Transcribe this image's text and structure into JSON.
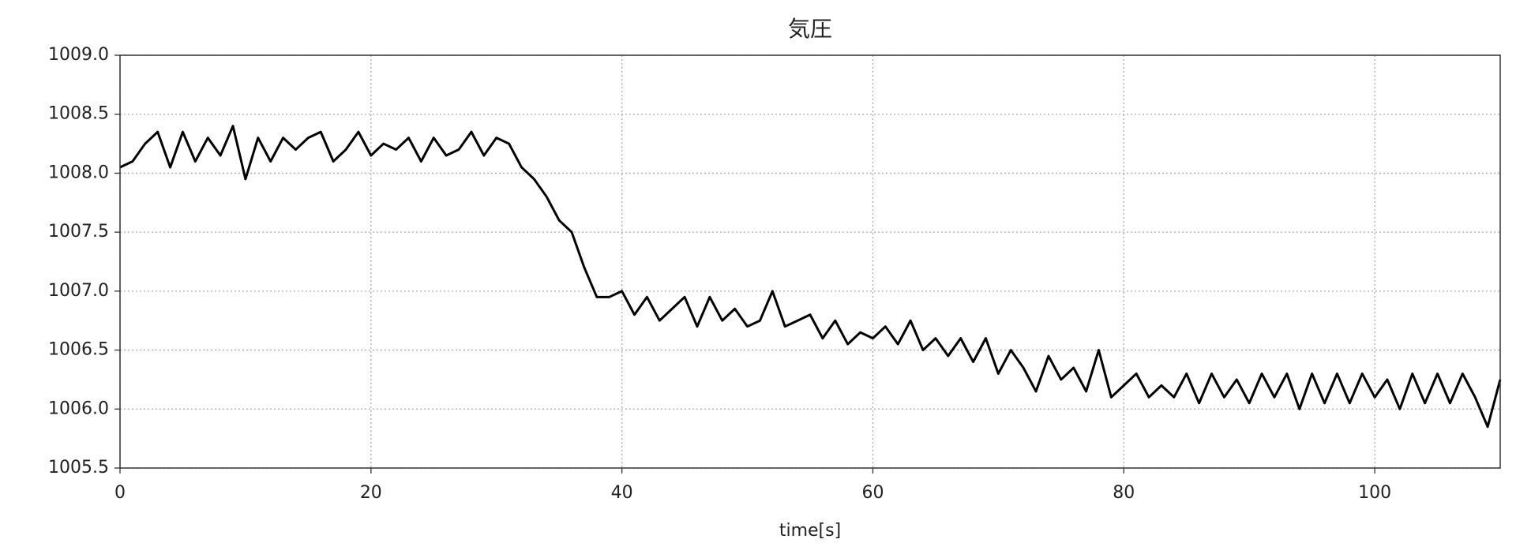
{
  "chart_data": {
    "type": "line",
    "title": "気圧",
    "x_label": "time[s]",
    "x": [
      0,
      1,
      2,
      3,
      4,
      5,
      6,
      7,
      8,
      9,
      10,
      11,
      12,
      13,
      14,
      15,
      16,
      17,
      18,
      19,
      20,
      21,
      22,
      23,
      24,
      25,
      26,
      27,
      28,
      29,
      30,
      31,
      32,
      33,
      34,
      35,
      36,
      37,
      38,
      39,
      40,
      41,
      42,
      43,
      44,
      45,
      46,
      47,
      48,
      49,
      50,
      51,
      52,
      53,
      54,
      55,
      56,
      57,
      58,
      59,
      60,
      61,
      62,
      63,
      64,
      65,
      66,
      67,
      68,
      69,
      70,
      71,
      72,
      73,
      74,
      75,
      76,
      77,
      78,
      79,
      80,
      81,
      82,
      83,
      84,
      85,
      86,
      87,
      88,
      89,
      90,
      91,
      92,
      93,
      94,
      95,
      96,
      97,
      98,
      99,
      100,
      101,
      102,
      103,
      104,
      105,
      106,
      107,
      108,
      109,
      110
    ],
    "values": [
      1008.05,
      1008.1,
      1008.25,
      1008.35,
      1008.05,
      1008.35,
      1008.1,
      1008.3,
      1008.15,
      1008.4,
      1007.95,
      1008.3,
      1008.1,
      1008.3,
      1008.2,
      1008.3,
      1008.35,
      1008.1,
      1008.2,
      1008.35,
      1008.15,
      1008.25,
      1008.2,
      1008.3,
      1008.1,
      1008.3,
      1008.15,
      1008.2,
      1008.35,
      1008.15,
      1008.3,
      1008.25,
      1008.05,
      1007.95,
      1007.8,
      1007.6,
      1007.5,
      1007.2,
      1006.95,
      1006.95,
      1007.0,
      1006.8,
      1006.95,
      1006.75,
      1006.85,
      1006.95,
      1006.7,
      1006.95,
      1006.75,
      1006.85,
      1006.7,
      1006.75,
      1007.0,
      1006.7,
      1006.75,
      1006.8,
      1006.6,
      1006.75,
      1006.55,
      1006.65,
      1006.6,
      1006.7,
      1006.55,
      1006.75,
      1006.5,
      1006.6,
      1006.45,
      1006.6,
      1006.4,
      1006.6,
      1006.3,
      1006.5,
      1006.35,
      1006.15,
      1006.45,
      1006.25,
      1006.35,
      1006.15,
      1006.5,
      1006.1,
      1006.2,
      1006.3,
      1006.1,
      1006.2,
      1006.1,
      1006.3,
      1006.05,
      1006.3,
      1006.1,
      1006.25,
      1006.05,
      1006.3,
      1006.1,
      1006.3,
      1006.0,
      1006.3,
      1006.05,
      1006.3,
      1006.05,
      1006.3,
      1006.1,
      1006.25,
      1006.0,
      1006.3,
      1006.05,
      1006.3,
      1006.05,
      1006.3,
      1006.1,
      1005.85,
      1006.25
    ],
    "color": "#000000",
    "xlim": [
      0,
      110
    ],
    "xticks": [
      0,
      20,
      40,
      60,
      80,
      100
    ],
    "ylim": [
      1005.5,
      1009.0
    ],
    "yticks": [
      1005.5,
      {
        "value": 1006.0,
        "label": "1006.0"
      },
      1006.5,
      {
        "value": 1007.0,
        "label": "1007.0"
      },
      1007.5,
      {
        "value": 1008.0,
        "label": "1008.0"
      },
      1008.5,
      {
        "value": 1009.0,
        "label": "1009.0"
      }
    ],
    "grid": true
  }
}
